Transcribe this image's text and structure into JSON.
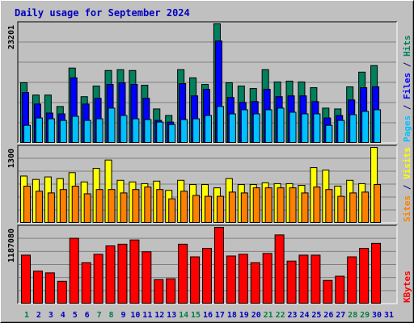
{
  "chart_data": [
    {
      "type": "bar",
      "title": "Daily usage for September 2024",
      "ylim": [
        0,
        23201
      ],
      "yticks": [
        23201
      ],
      "legend_separator": " / ",
      "series": [
        {
          "name": "Pages",
          "color": "#00c0ff",
          "values": [
            3496,
            4926,
            4767,
            4449,
            5244,
            4449,
            4767,
            6833,
            5403,
            4767,
            4608,
            4131,
            3655,
            4608,
            4767,
            5403,
            7151,
            5720,
            6515,
            5720,
            6515,
            6833,
            6038,
            5720,
            5720,
            3496,
            4449,
            5562,
            6197,
            6515,
            null
          ]
        },
        {
          "name": "Files",
          "color": "#0000ff",
          "values": [
            9852,
            7627,
            5879,
            5720,
            12712,
            7627,
            8740,
            11441,
            11759,
            11441,
            8740,
            4449,
            4131,
            11600,
            9216,
            10487,
            19863,
            8898,
            7945,
            8104,
            10487,
            9057,
            9216,
            9216,
            8104,
            4926,
            5403,
            8422,
            10805,
            10964,
            null
          ]
        },
        {
          "name": "Hits",
          "color": "#00805c",
          "values": [
            11759,
            9375,
            9375,
            7151,
            14619,
            9057,
            11123,
            14142,
            14301,
            14142,
            11282,
            6674,
            5403,
            14301,
            12712,
            11441,
            23201,
            11759,
            11123,
            10646,
            14301,
            11918,
            12077,
            11918,
            10805,
            6833,
            6674,
            10964,
            13824,
            15096,
            null
          ]
        }
      ]
    },
    {
      "type": "bar",
      "ylim": [
        0,
        1300
      ],
      "yticks": [
        1300
      ],
      "legend_separator": " / ",
      "series": [
        {
          "name": "Sites",
          "color": "#ff8000",
          "values": [
            636,
            549,
            520,
            578,
            636,
            505,
            578,
            578,
            520,
            578,
            621,
            578,
            419,
            549,
            477,
            462,
            462,
            534,
            520,
            607,
            607,
            607,
            607,
            520,
            621,
            578,
            462,
            520,
            534,
            664,
            null
          ]
        },
        {
          "name": "Visits",
          "color": "#ffff00",
          "values": [
            809,
            751,
            794,
            765,
            867,
            708,
            939,
            1083,
            736,
            708,
            679,
            722,
            563,
            736,
            664,
            664,
            607,
            765,
            664,
            664,
            693,
            679,
            679,
            650,
            953,
            910,
            636,
            736,
            679,
            1300,
            null
          ]
        }
      ]
    },
    {
      "type": "bar",
      "ylim": [
        0,
        1187080
      ],
      "yticks": [
        1187080
      ],
      "categories": [
        "1",
        "2",
        "3",
        "4",
        "5",
        "6",
        "7",
        "8",
        "9",
        "10",
        "11",
        "12",
        "13",
        "14",
        "15",
        "16",
        "17",
        "18",
        "19",
        "20",
        "21",
        "22",
        "23",
        "24",
        "25",
        "26",
        "27",
        "28",
        "29",
        "30",
        "31"
      ],
      "category_colors": [
        "#008040",
        "#0000c0",
        "#0000c0",
        "#0000c0",
        "#0000c0",
        "#0000c0",
        "#008040",
        "#008040",
        "#0000c0",
        "#0000c0",
        "#0000c0",
        "#0000c0",
        "#0000c0",
        "#008040",
        "#008040",
        "#0000c0",
        "#0000c0",
        "#0000c0",
        "#0000c0",
        "#0000c0",
        "#008040",
        "#008040",
        "#0000c0",
        "#0000c0",
        "#0000c0",
        "#0000c0",
        "#0000c0",
        "#008040",
        "#008040",
        "#0000c0",
        "#0000c0"
      ],
      "series": [
        {
          "name": "KBytes",
          "color": "#ff0000",
          "values": [
            756610,
            508755,
            482665,
            352215,
            1017510,
            639205,
            769655,
            900105,
            926195,
            991420,
            808790,
            378305,
            391350,
            926195,
            730520,
            860970,
            1187080,
            743565,
            769655,
            639205,
            782700,
            1069690,
            665295,
            756610,
            756610,
            365260,
            430485,
            730520,
            860970,
            939240,
            null
          ]
        }
      ]
    }
  ]
}
